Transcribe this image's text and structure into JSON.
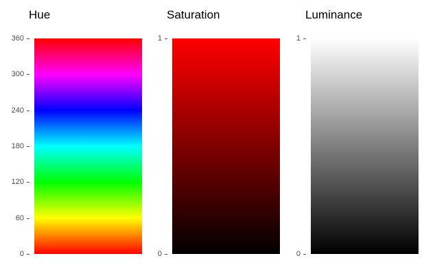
{
  "chart_data": [
    {
      "type": "heatmap",
      "title": "Hue",
      "ylim": [
        0,
        360
      ],
      "ticks": [
        0,
        60,
        120,
        180,
        240,
        300,
        360
      ],
      "tick_labels": [
        "0",
        "60",
        "120",
        "180",
        "240",
        "300",
        "360"
      ],
      "gradient": "hue",
      "grid": false
    },
    {
      "type": "heatmap",
      "title": "Saturation",
      "ylim": [
        0,
        1
      ],
      "ticks": [
        0,
        1
      ],
      "tick_labels": [
        "0",
        "1"
      ],
      "gradient": "saturation",
      "color_low": "#000000",
      "color_high": "#ff0000",
      "grid": false
    },
    {
      "type": "heatmap",
      "title": "Luminance",
      "ylim": [
        0,
        1
      ],
      "ticks": [
        0,
        1
      ],
      "tick_labels": [
        "0",
        "1"
      ],
      "gradient": "luminance",
      "color_low": "#000000",
      "color_high": "#ffffff",
      "grid": false
    }
  ]
}
